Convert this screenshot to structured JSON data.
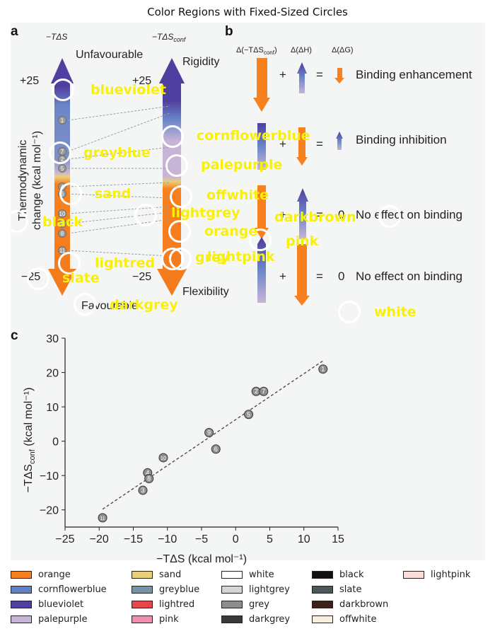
{
  "title": "Color Regions with Fixed-Sized Circles",
  "panel_a": {
    "letter": "a",
    "col1_header": "−TΔS",
    "col2_header": "−TΔS",
    "col2_header_sub": "conf",
    "top_left": "Unfavourable",
    "top_right": "Rigidity",
    "bottom_left": "Favourable",
    "bottom_right": "Flexibility",
    "y_label_line1": "Thermodynamic",
    "y_label_line2": "change (kcal mol⁻¹)",
    "plus25_left": "+25",
    "plus25_right": "+25",
    "minus25_left": "−25",
    "minus25_right": "−25",
    "bar_numbers_left": [
      "1",
      "7",
      "2",
      "5",
      "4",
      "6",
      "10",
      "3",
      "8",
      "11"
    ]
  },
  "panel_b": {
    "letter": "b",
    "header_1": "Δ(−TΔS",
    "header_1_sub": "conf",
    "header_1_end": ")",
    "header_2": "Δ(ΔH)",
    "header_3": "Δ(ΔG)",
    "plus": "+",
    "equals": "=",
    "zero": "0",
    "row1_label": "Binding enhancement",
    "row2_label": "Binding inhibition",
    "row3_label": "No effect on binding",
    "row4_label": "No effect on binding"
  },
  "panel_c": {
    "letter": "c",
    "chart_data": {
      "type": "scatter",
      "xlabel": "−TΔS (kcal mol⁻¹)",
      "ylabel": "−TΔS",
      "ylabel_sub": "conf",
      "ylabel_end": " (kcal mol⁻¹)",
      "xlim": [
        -25,
        15
      ],
      "ylim": [
        -25,
        30
      ],
      "xticks": [
        -25,
        -20,
        -15,
        -10,
        -5,
        0,
        5,
        10,
        15
      ],
      "yticks": [
        -20,
        -10,
        0,
        10,
        20,
        30
      ],
      "points": [
        {
          "label": "1",
          "x": 12.8,
          "y": 21
        },
        {
          "label": "2",
          "x": 3.0,
          "y": 14.5
        },
        {
          "label": "7",
          "x": 4.1,
          "y": 14.5
        },
        {
          "label": "5",
          "x": 1.9,
          "y": 7.8
        },
        {
          "label": "9",
          "x": -3.9,
          "y": 2.5
        },
        {
          "label": "6",
          "x": -2.9,
          "y": -2.3
        },
        {
          "label": "10",
          "x": -10.6,
          "y": -4.8
        },
        {
          "label": "4",
          "x": -12.9,
          "y": -9.2
        },
        {
          "label": "8",
          "x": -12.7,
          "y": -10.9
        },
        {
          "label": "3",
          "x": -13.6,
          "y": -14.3
        },
        {
          "label": "11",
          "x": -19.5,
          "y": -22.3
        }
      ],
      "fit_line": {
        "x": [
          -19.5,
          12.8
        ],
        "y": [
          -19.8,
          23.4
        ]
      },
      "grid": false
    }
  },
  "overlay_labels": [
    "blueviolet",
    "cornflowerblue",
    "greyblue",
    "palepurple",
    "sand",
    "offwhite",
    "lightgrey",
    "darkbrown",
    "black",
    "orange",
    "pink",
    "grey",
    "lightpink",
    "lightred",
    "slate",
    "darkgrey",
    "white"
  ],
  "legend": {
    "items": [
      {
        "name": "orange",
        "color": "#f7811f"
      },
      {
        "name": "cornflowerblue",
        "color": "#5f81c7"
      },
      {
        "name": "blueviolet",
        "color": "#4f3f9f"
      },
      {
        "name": "palepurple",
        "color": "#c8b4d6"
      },
      {
        "name": "sand",
        "color": "#e9cf79"
      },
      {
        "name": "greyblue",
        "color": "#7793a8"
      },
      {
        "name": "lightred",
        "color": "#e6474a"
      },
      {
        "name": "pink",
        "color": "#f38daf"
      },
      {
        "name": "white",
        "color": "#ffffff"
      },
      {
        "name": "lightgrey",
        "color": "#d5d5d7"
      },
      {
        "name": "grey",
        "color": "#8d8d8d"
      },
      {
        "name": "darkgrey",
        "color": "#383a39"
      },
      {
        "name": "black",
        "color": "#111111"
      },
      {
        "name": "slate",
        "color": "#4a585e"
      },
      {
        "name": "darkbrown",
        "color": "#3a2119"
      },
      {
        "name": "offwhite",
        "color": "#f7efdc"
      },
      {
        "name": "lightpink",
        "color": "#fcdcd8"
      }
    ]
  }
}
